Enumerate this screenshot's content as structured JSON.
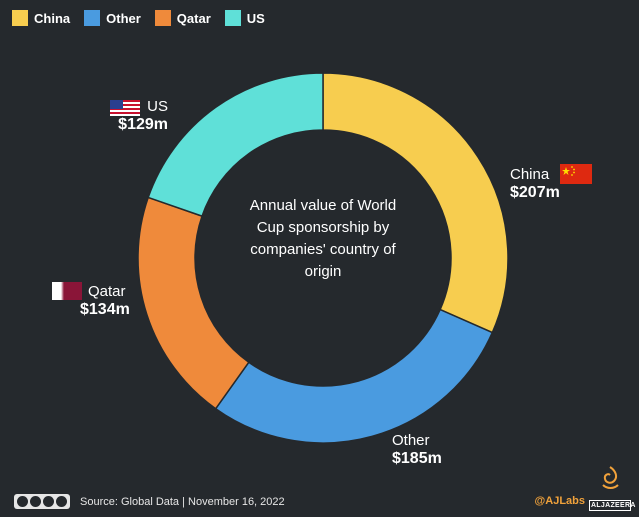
{
  "legend": [
    {
      "label": "China",
      "color": "#f7cd4f"
    },
    {
      "label": "Other",
      "color": "#4a9be0"
    },
    {
      "label": "Qatar",
      "color": "#ef8a3b"
    },
    {
      "label": "US",
      "color": "#5fe0d8"
    }
  ],
  "center_text": "Annual value of World Cup sponsorship by companies' country of origin",
  "labels": {
    "china": {
      "name": "China",
      "value": "$207m"
    },
    "other": {
      "name": "Other",
      "value": "$185m"
    },
    "qatar": {
      "name": "Qatar",
      "value": "$134m"
    },
    "us": {
      "name": "US",
      "value": "$129m"
    }
  },
  "footer": {
    "source": "Source: Global Data  |  November 16, 2022",
    "handle": "@AJLabs",
    "logo_text": "ALJAZEERA"
  },
  "chart_data": {
    "type": "pie",
    "donut": true,
    "title": "Annual value of World Cup sponsorship by companies' country of origin",
    "categories": [
      "China",
      "Other",
      "Qatar",
      "US"
    ],
    "values": [
      207,
      185,
      134,
      129
    ],
    "unit": "$m",
    "colors": [
      "#f7cd4f",
      "#4a9be0",
      "#ef8a3b",
      "#5fe0d8"
    ],
    "start": "top",
    "direction": "clockwise"
  }
}
